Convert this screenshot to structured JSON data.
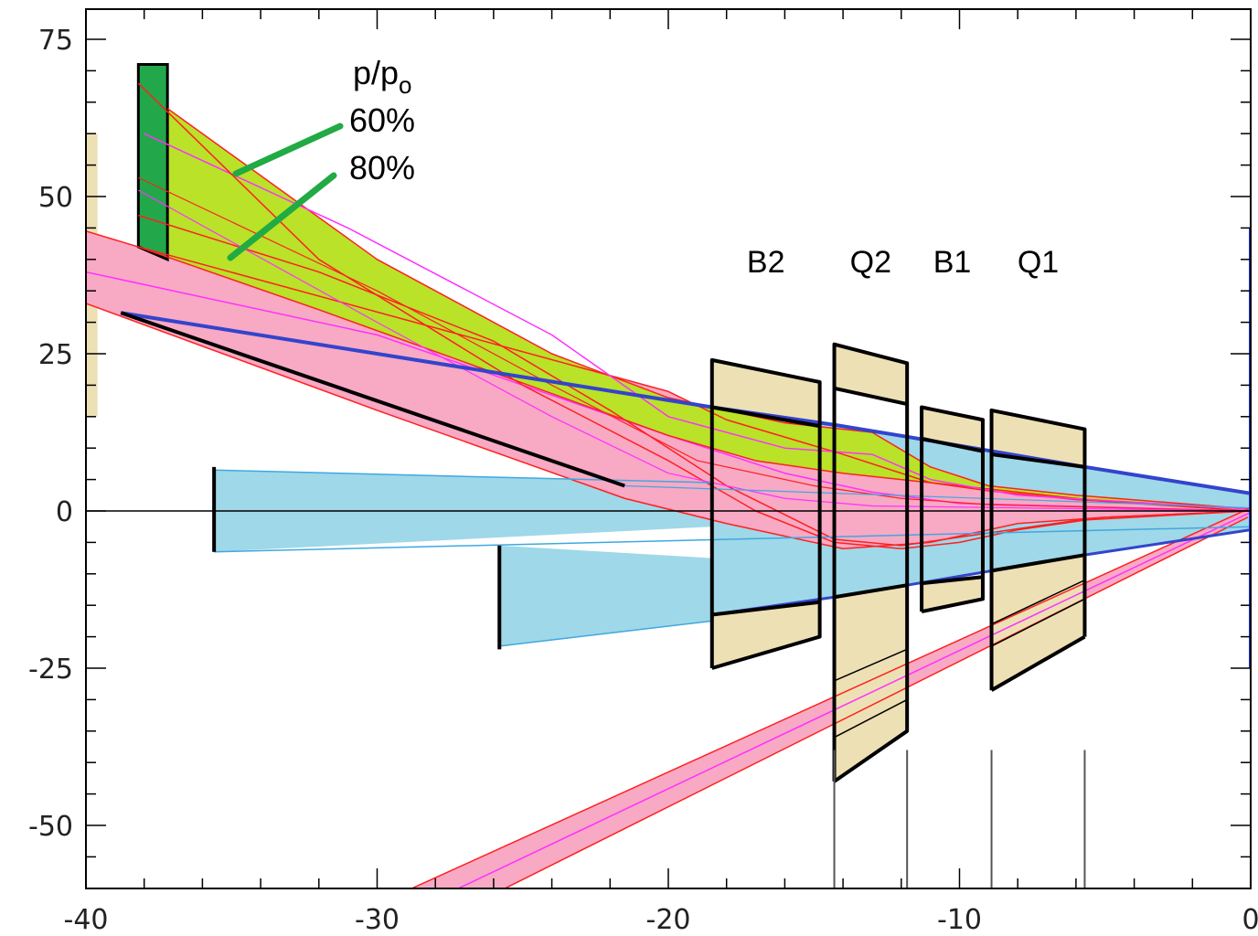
{
  "chart_data": {
    "type": "beam-envelope",
    "xlim": [
      -40,
      0
    ],
    "ylim": [
      -60,
      80
    ],
    "x_ticks": [
      {
        "value": -40,
        "label": "-40"
      },
      {
        "value": -30,
        "label": "-30"
      },
      {
        "value": -20,
        "label": "-20"
      },
      {
        "value": -10,
        "label": "-10"
      },
      {
        "value": 0,
        "label": "0"
      }
    ],
    "y_ticks": [
      {
        "value": 75,
        "label": "75"
      },
      {
        "value": 50,
        "label": "50"
      },
      {
        "value": 25,
        "label": "25"
      },
      {
        "value": 0,
        "label": "0"
      },
      {
        "value": -25,
        "label": "-25"
      },
      {
        "value": -50,
        "label": "-50"
      }
    ],
    "legend": {
      "title": "p/p",
      "title_subscript": "o",
      "entries": [
        "60%",
        "80%"
      ]
    },
    "elements": [
      {
        "label": "B2",
        "x": [
          -18.5,
          -14.8
        ]
      },
      {
        "label": "Q2",
        "x": [
          -14.3,
          -11.8
        ]
      },
      {
        "label": "B1",
        "x": [
          -11.3,
          -9.2
        ]
      },
      {
        "label": "Q1",
        "x": [
          -8.9,
          -5.7
        ]
      }
    ],
    "colors": {
      "element_fill": "#ede0b4",
      "aperture_fill": "#9fd8e8",
      "envelope_fill": "#f8a9c4",
      "off_momentum_fill": "#b9e228",
      "absorber_fill": "#22a84a",
      "envelope_edge": "#ff2020",
      "centroid": "#ff30ff",
      "aperture_line": "#3344cc"
    }
  }
}
